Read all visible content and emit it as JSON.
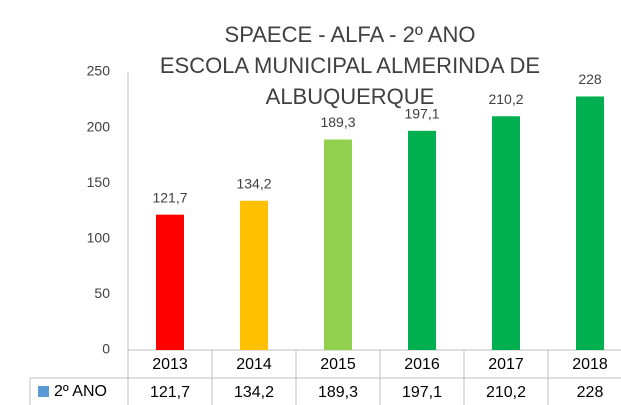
{
  "chart_data": {
    "type": "bar",
    "title": [
      "SPAECE - ALFA - 2º ANO",
      "ESCOLA MUNICIPAL ALMERINDA DE",
      "ALBUQUERQUE"
    ],
    "categories": [
      "2013",
      "2014",
      "2015",
      "2016",
      "2017",
      "2018"
    ],
    "series": [
      {
        "name": "2º ANO",
        "color": "#5b9bd5",
        "values": [
          121.7,
          134.2,
          189.3,
          197.1,
          210.2,
          228
        ],
        "value_labels": [
          "121,7",
          "134,2",
          "189,3",
          "197,1",
          "210,2",
          "228"
        ],
        "colors": [
          "#ff0000",
          "#ffc000",
          "#92d050",
          "#00b050",
          "#00b050",
          "#00b050"
        ]
      }
    ],
    "ylim": [
      0,
      250
    ],
    "yticks": [
      0,
      50,
      100,
      150,
      200,
      250
    ],
    "grid": false,
    "data_table": true
  }
}
